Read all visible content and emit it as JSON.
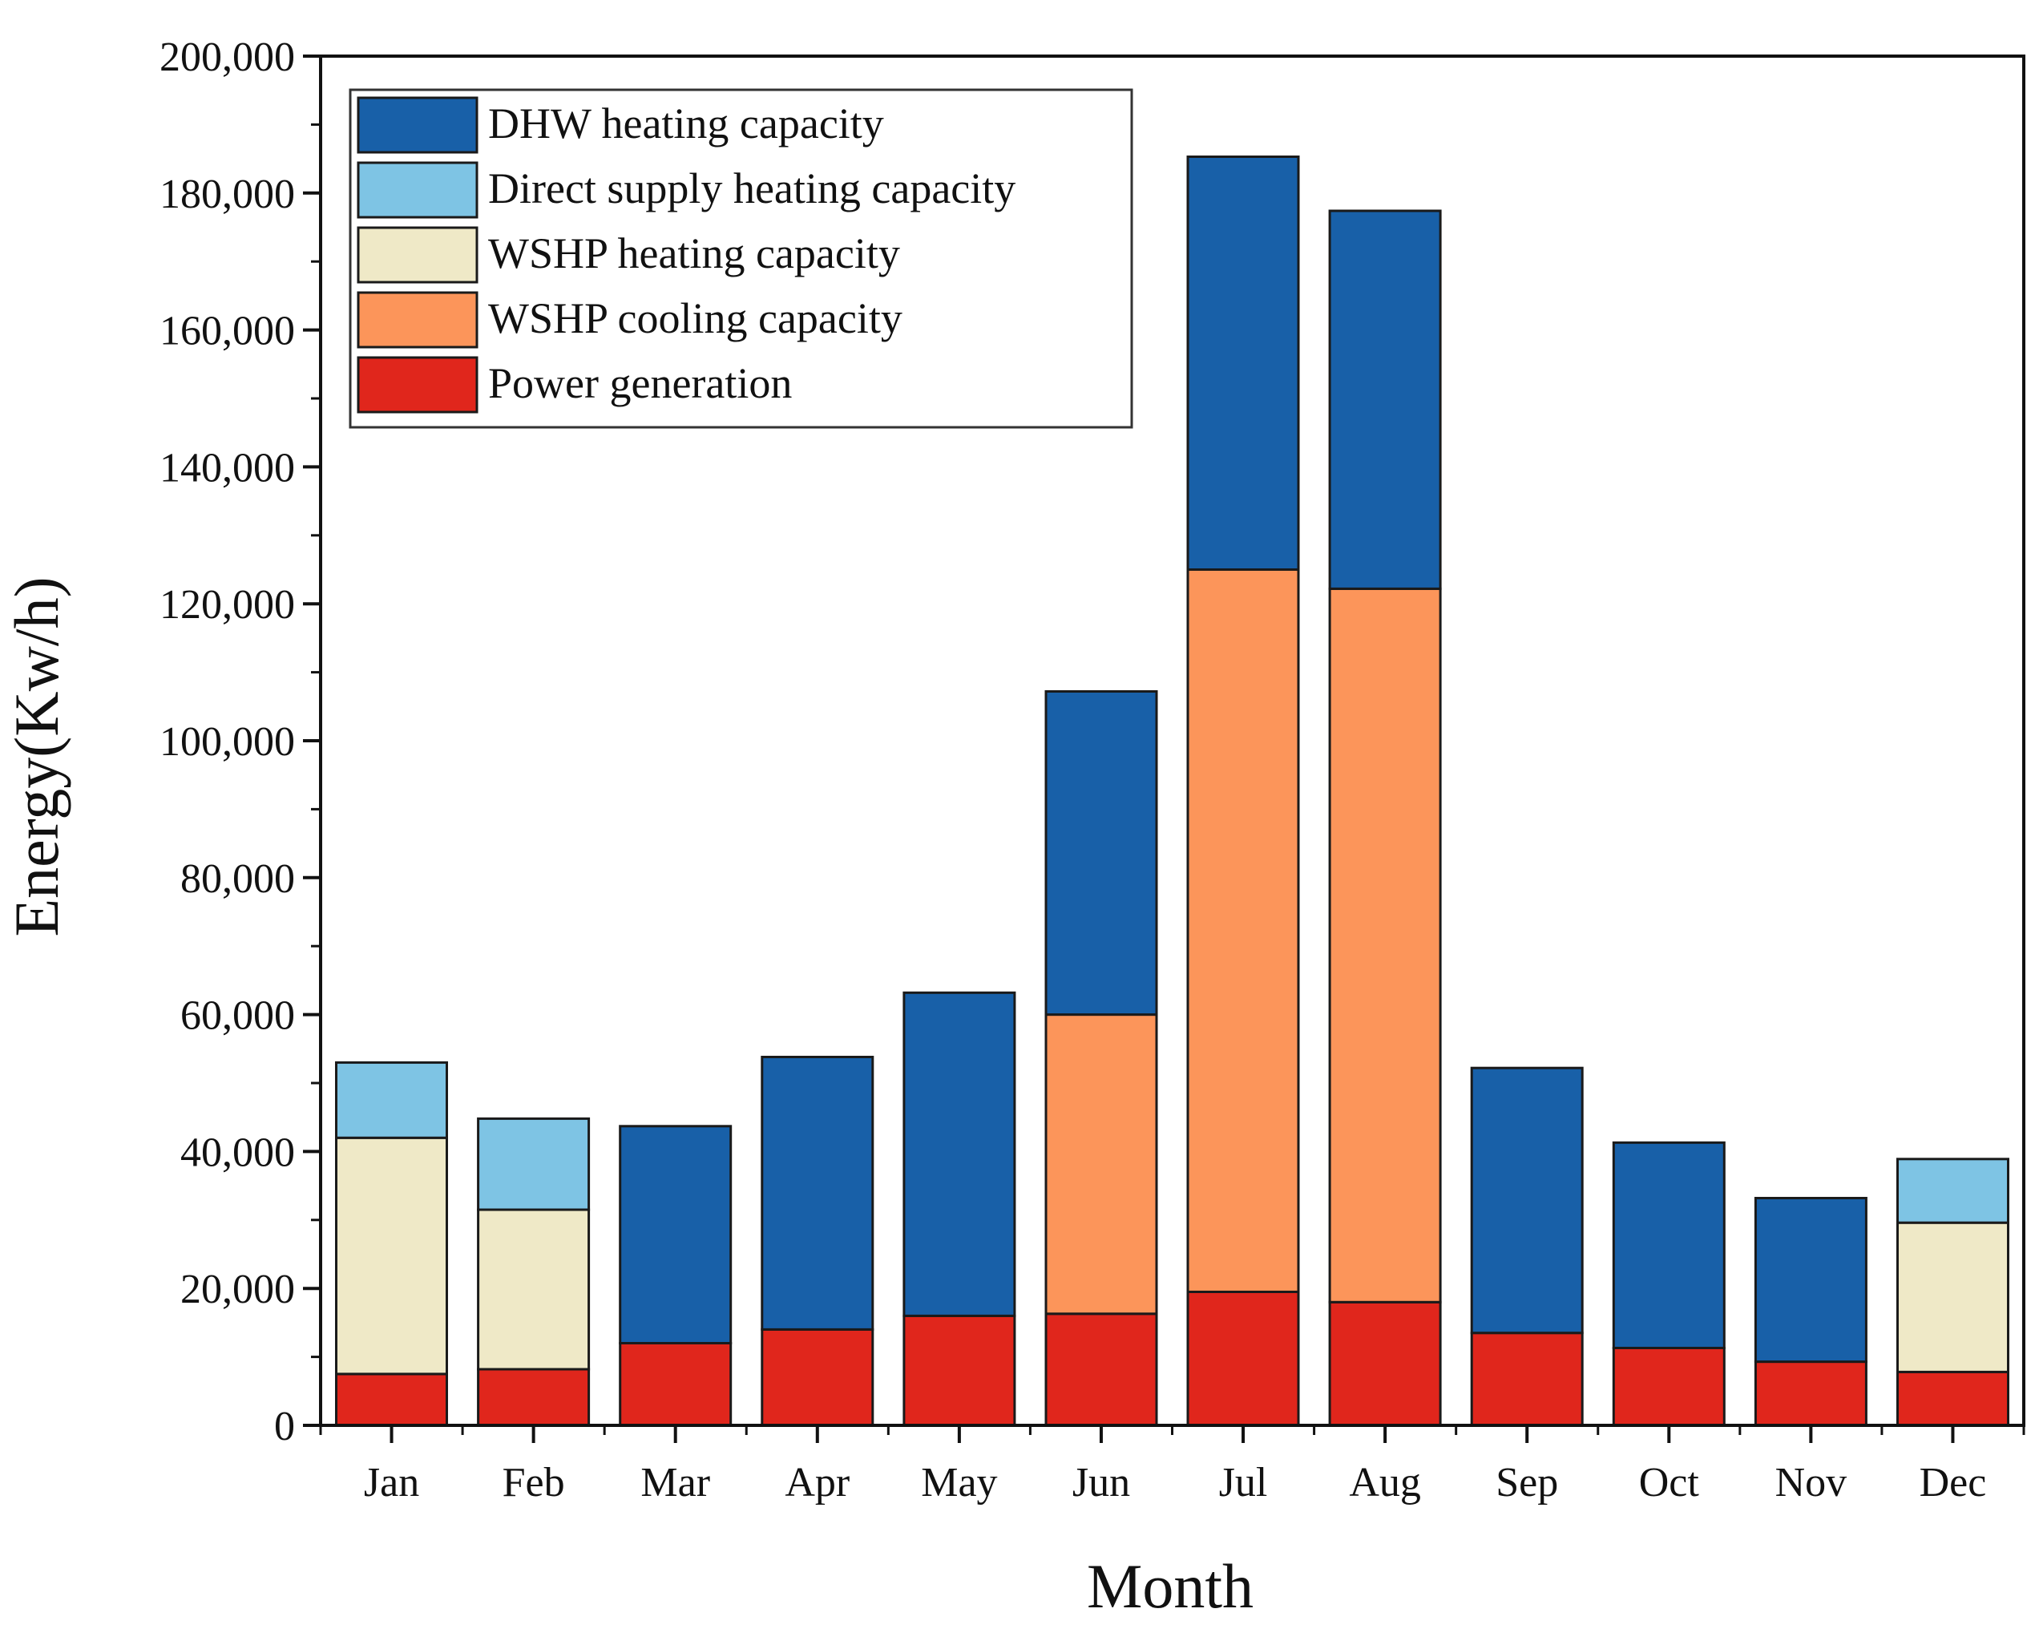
{
  "chart_data": {
    "type": "bar",
    "stacked": true,
    "title": "",
    "xlabel": "Month",
    "ylabel": "Energy(Kw/h)",
    "ylim": [
      0,
      200000
    ],
    "yticks": [
      0,
      20000,
      40000,
      60000,
      80000,
      100000,
      120000,
      140000,
      160000,
      180000,
      200000
    ],
    "ytick_labels": [
      "0",
      "20,000",
      "40,000",
      "60,000",
      "80,000",
      "100,000",
      "120,000",
      "140,000",
      "160,000",
      "180,000",
      "200,000"
    ],
    "grid": false,
    "legend_position": "top-left",
    "categories": [
      "Jan",
      "Feb",
      "Mar",
      "Apr",
      "May",
      "Jun",
      "Jul",
      "Aug",
      "Sep",
      "Oct",
      "Nov",
      "Dec"
    ],
    "series": [
      {
        "name": "Power generation",
        "color": "#e0261c",
        "values": [
          7500,
          8200,
          12000,
          14000,
          16000,
          16300,
          19500,
          18000,
          13500,
          11300,
          9300,
          7800
        ]
      },
      {
        "name": "WSHP cooling capacity",
        "color": "#fc955a",
        "values": [
          0,
          0,
          0,
          0,
          0,
          43700,
          105500,
          104200,
          0,
          0,
          0,
          0
        ]
      },
      {
        "name": "WSHP heating capacity",
        "color": "#efe9c7",
        "values": [
          34500,
          23300,
          0,
          0,
          0,
          0,
          0,
          0,
          0,
          0,
          0,
          21800
        ]
      },
      {
        "name": "Direct supply heating capacity",
        "color": "#7ec4e4",
        "values": [
          11000,
          13300,
          0,
          0,
          0,
          0,
          0,
          0,
          0,
          0,
          0,
          9300
        ]
      },
      {
        "name": "DHW heating capacity",
        "color": "#1860a8",
        "values": [
          0,
          0,
          31700,
          39800,
          47200,
          47200,
          60300,
          55200,
          38700,
          30000,
          23900,
          0
        ]
      }
    ],
    "legend_order": [
      "DHW heating capacity",
      "Direct supply heating capacity",
      "WSHP heating capacity",
      "WSHP cooling capacity",
      "Power generation"
    ]
  }
}
